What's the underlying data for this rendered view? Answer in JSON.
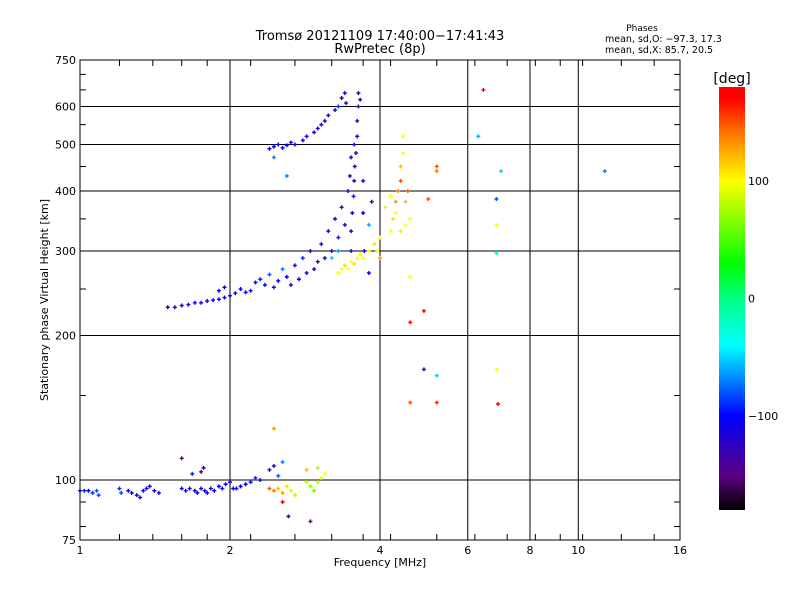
{
  "chart_data": {
    "type": "scatter",
    "title": "Tromsø 20121109 17:40:00−17:41:43",
    "subtitle": "RwPretec (8p)",
    "xlabel": "Frequency [MHz]",
    "ylabel": "Stationary phase Virtual Height [km]",
    "xscale": "log",
    "yscale": "log",
    "xlim": [
      1,
      16
    ],
    "ylim": [
      75,
      750
    ],
    "xticks": [
      "1",
      "2",
      "4",
      "6",
      "8",
      "10",
      "16"
    ],
    "xtick_values": [
      1,
      2,
      4,
      6,
      8,
      10,
      16
    ],
    "yticks": [
      "75",
      "100",
      "200",
      "300",
      "400",
      "500",
      "600",
      "750"
    ],
    "ytick_values": [
      75,
      100,
      200,
      300,
      400,
      500,
      600,
      750
    ],
    "grid": true,
    "phases_box": {
      "title": "Phases",
      "line_o": "mean, sd,O: −97.3, 17.3",
      "line_x": "mean, sd,X:  85.7, 20.5"
    },
    "colorbar": {
      "label": "[deg]",
      "range": [
        -180,
        180
      ],
      "ticks": [
        "100",
        "0",
        "−100"
      ],
      "tick_values": [
        100,
        0,
        -100
      ]
    },
    "point_format": [
      "frequency_MHz",
      "height_km",
      "phase_deg"
    ],
    "points": [
      [
        1.0,
        95,
        -95
      ],
      [
        1.02,
        95,
        -95
      ],
      [
        1.04,
        95,
        -100
      ],
      [
        1.06,
        94,
        -90
      ],
      [
        1.08,
        95,
        -80
      ],
      [
        1.09,
        93,
        -85
      ],
      [
        1.2,
        96,
        -90
      ],
      [
        1.21,
        94,
        -85
      ],
      [
        1.25,
        95,
        -110
      ],
      [
        1.27,
        94,
        -105
      ],
      [
        1.3,
        93,
        -110
      ],
      [
        1.32,
        92,
        -115
      ],
      [
        1.34,
        95,
        -110
      ],
      [
        1.36,
        96,
        -110
      ],
      [
        1.38,
        97,
        -105
      ],
      [
        1.41,
        95,
        -110
      ],
      [
        1.44,
        94,
        -100
      ],
      [
        1.6,
        96,
        -110
      ],
      [
        1.63,
        95,
        -105
      ],
      [
        1.66,
        96,
        -110
      ],
      [
        1.68,
        103,
        -90
      ],
      [
        1.7,
        95,
        -110
      ],
      [
        1.72,
        94,
        -100
      ],
      [
        1.75,
        96,
        -110
      ],
      [
        1.78,
        95,
        -105
      ],
      [
        1.8,
        94,
        -110
      ],
      [
        1.83,
        96,
        -110
      ],
      [
        1.86,
        95,
        -105
      ],
      [
        1.9,
        97,
        -110
      ],
      [
        1.93,
        96,
        -110
      ],
      [
        1.96,
        98,
        -110
      ],
      [
        2.0,
        99,
        -110
      ],
      [
        2.03,
        96,
        -105
      ],
      [
        2.06,
        96,
        -100
      ],
      [
        2.1,
        97,
        -105
      ],
      [
        2.15,
        98,
        -100
      ],
      [
        2.2,
        99,
        -95
      ],
      [
        2.25,
        101,
        -90
      ],
      [
        2.3,
        100,
        -110
      ],
      [
        1.6,
        111,
        -150
      ],
      [
        1.75,
        104,
        -140
      ],
      [
        1.77,
        106,
        -120
      ],
      [
        2.4,
        105,
        -110
      ],
      [
        2.45,
        107,
        -120
      ],
      [
        2.5,
        102,
        -80
      ],
      [
        2.55,
        109,
        -70
      ],
      [
        2.45,
        128,
        130
      ],
      [
        2.4,
        96,
        150
      ],
      [
        2.45,
        95,
        140
      ],
      [
        2.5,
        96,
        120
      ],
      [
        2.55,
        94,
        130
      ],
      [
        2.6,
        97,
        110
      ],
      [
        2.65,
        95,
        90
      ],
      [
        2.7,
        93,
        80
      ],
      [
        2.55,
        90,
        170
      ],
      [
        2.62,
        84,
        -140
      ],
      [
        2.85,
        99,
        80
      ],
      [
        2.9,
        97,
        70
      ],
      [
        2.95,
        95,
        60
      ],
      [
        3.0,
        99,
        80
      ],
      [
        3.05,
        101,
        90
      ],
      [
        3.1,
        103,
        100
      ],
      [
        3.0,
        106,
        80
      ],
      [
        2.85,
        105,
        120
      ],
      [
        2.9,
        82,
        -150
      ],
      [
        1.5,
        229,
        -110
      ],
      [
        1.55,
        229,
        -110
      ],
      [
        1.6,
        231,
        -105
      ],
      [
        1.65,
        232,
        -110
      ],
      [
        1.7,
        234,
        -110
      ],
      [
        1.75,
        234,
        -110
      ],
      [
        1.8,
        236,
        -105
      ],
      [
        1.85,
        237,
        -110
      ],
      [
        1.9,
        238,
        -110
      ],
      [
        1.95,
        240,
        -110
      ],
      [
        2.0,
        242,
        -105
      ],
      [
        1.9,
        248,
        -100
      ],
      [
        1.95,
        252,
        -105
      ],
      [
        2.05,
        245,
        -110
      ],
      [
        2.1,
        250,
        -105
      ],
      [
        2.15,
        246,
        -100
      ],
      [
        2.2,
        248,
        -110
      ],
      [
        2.25,
        258,
        -100
      ],
      [
        2.3,
        262,
        -90
      ],
      [
        2.35,
        255,
        -100
      ],
      [
        2.4,
        268,
        -80
      ],
      [
        2.45,
        252,
        -110
      ],
      [
        2.5,
        260,
        -100
      ],
      [
        2.55,
        275,
        -70
      ],
      [
        2.6,
        265,
        -100
      ],
      [
        2.65,
        255,
        -110
      ],
      [
        2.7,
        280,
        -120
      ],
      [
        2.75,
        262,
        -110
      ],
      [
        2.8,
        290,
        -90
      ],
      [
        2.85,
        270,
        -120
      ],
      [
        2.9,
        300,
        -120
      ],
      [
        2.95,
        275,
        -120
      ],
      [
        3.0,
        285,
        -125
      ],
      [
        3.05,
        310,
        -125
      ],
      [
        3.1,
        290,
        -120
      ],
      [
        3.15,
        330,
        -120
      ],
      [
        3.2,
        300,
        -125
      ],
      [
        3.25,
        350,
        -120
      ],
      [
        3.3,
        320,
        -125
      ],
      [
        3.35,
        370,
        -125
      ],
      [
        3.4,
        340,
        -120
      ],
      [
        3.45,
        400,
        -125
      ],
      [
        3.5,
        300,
        -120
      ],
      [
        3.5,
        330,
        -120
      ],
      [
        3.52,
        360,
        -125
      ],
      [
        3.54,
        390,
        -120
      ],
      [
        3.55,
        420,
        -125
      ],
      [
        3.56,
        450,
        -120
      ],
      [
        3.58,
        480,
        -120
      ],
      [
        3.6,
        520,
        -125
      ],
      [
        3.6,
        560,
        -120
      ],
      [
        3.62,
        600,
        -120
      ],
      [
        3.62,
        640,
        -125
      ],
      [
        3.65,
        620,
        -130
      ],
      [
        3.48,
        430,
        -120
      ],
      [
        3.5,
        470,
        -120
      ],
      [
        3.55,
        500,
        -115
      ],
      [
        3.7,
        360,
        -110
      ],
      [
        3.7,
        420,
        -120
      ],
      [
        3.72,
        300,
        -100
      ],
      [
        3.8,
        340,
        -60
      ],
      [
        3.8,
        270,
        -100
      ],
      [
        3.85,
        380,
        -130
      ],
      [
        3.3,
        300,
        -60
      ],
      [
        3.2,
        290,
        -50
      ],
      [
        2.4,
        490,
        -100
      ],
      [
        2.45,
        495,
        -100
      ],
      [
        2.5,
        500,
        -105
      ],
      [
        2.55,
        492,
        -100
      ],
      [
        2.6,
        498,
        -100
      ],
      [
        2.65,
        505,
        -110
      ],
      [
        2.7,
        500,
        -100
      ],
      [
        2.8,
        510,
        -110
      ],
      [
        2.85,
        520,
        -110
      ],
      [
        2.95,
        530,
        -120
      ],
      [
        3.0,
        540,
        -125
      ],
      [
        3.05,
        550,
        -125
      ],
      [
        3.1,
        560,
        -125
      ],
      [
        3.15,
        575,
        -120
      ],
      [
        3.25,
        590,
        -120
      ],
      [
        3.35,
        625,
        -125
      ],
      [
        3.4,
        640,
        -110
      ],
      [
        3.42,
        610,
        -115
      ],
      [
        3.3,
        600,
        -90
      ],
      [
        2.6,
        430,
        -70
      ],
      [
        2.45,
        470,
        -70
      ],
      [
        3.3,
        270,
        100
      ],
      [
        3.35,
        275,
        100
      ],
      [
        3.4,
        280,
        110
      ],
      [
        3.45,
        276,
        100
      ],
      [
        3.5,
        285,
        100
      ],
      [
        3.55,
        282,
        110
      ],
      [
        3.6,
        290,
        100
      ],
      [
        3.65,
        295,
        90
      ],
      [
        3.7,
        290,
        100
      ],
      [
        3.8,
        300,
        100
      ],
      [
        3.9,
        310,
        110
      ],
      [
        3.95,
        300,
        95
      ],
      [
        4.0,
        320,
        100
      ],
      [
        4.0,
        290,
        130
      ],
      [
        4.2,
        330,
        100
      ],
      [
        4.25,
        350,
        110
      ],
      [
        4.3,
        360,
        100
      ],
      [
        4.3,
        380,
        130
      ],
      [
        4.35,
        400,
        140
      ],
      [
        4.4,
        420,
        150
      ],
      [
        4.4,
        450,
        120
      ],
      [
        4.45,
        480,
        100
      ],
      [
        4.45,
        520,
        100
      ],
      [
        4.5,
        340,
        100
      ],
      [
        4.5,
        380,
        120
      ],
      [
        4.55,
        400,
        150
      ],
      [
        4.4,
        330,
        90
      ],
      [
        4.1,
        370,
        90
      ],
      [
        4.2,
        390,
        100
      ],
      [
        4.6,
        350,
        100
      ],
      [
        6.45,
        650,
        175
      ],
      [
        6.3,
        520,
        -60
      ],
      [
        7.0,
        440,
        -50
      ],
      [
        11.3,
        440,
        -70
      ],
      [
        6.85,
        385,
        -80
      ],
      [
        6.85,
        340,
        100
      ],
      [
        6.85,
        297,
        -20
      ],
      [
        5.2,
        450,
        150
      ],
      [
        5.2,
        440,
        140
      ],
      [
        5.0,
        385,
        150
      ],
      [
        4.6,
        265,
        100
      ],
      [
        4.9,
        225,
        170
      ],
      [
        4.6,
        213,
        170
      ],
      [
        4.9,
        170,
        -130
      ],
      [
        5.2,
        165,
        -50
      ],
      [
        4.6,
        145,
        150
      ],
      [
        5.2,
        145,
        160
      ],
      [
        6.85,
        170,
        100
      ],
      [
        6.9,
        144,
        170
      ]
    ]
  }
}
